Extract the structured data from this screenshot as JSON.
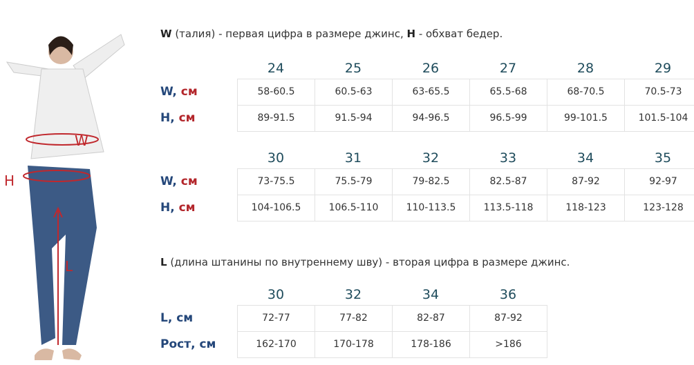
{
  "intro": {
    "w_letter": "W",
    "w_text": " (талия) - первая цифра в размере джинс, ",
    "h_letter": "H",
    "h_text": " - обхват бедер."
  },
  "l_intro": {
    "l_letter": "L",
    "l_text": " (длина штанины по внутреннему шву) - вторая цифра в размере джинс."
  },
  "figure": {
    "w_marker": "W",
    "h_marker": "H",
    "l_marker": "L"
  },
  "colors": {
    "header": "#1f4c5c",
    "label": "#24477a",
    "unit": "#b3262b",
    "marker": "#c0282d"
  },
  "tables": [
    {
      "headers": [
        "24",
        "25",
        "26",
        "27",
        "28",
        "29"
      ],
      "rows": [
        {
          "label": "W,",
          "unit": " см",
          "values": [
            "58-60.5",
            "60.5-63",
            "63-65.5",
            "65.5-68",
            "68-70.5",
            "70.5-73"
          ]
        },
        {
          "label": "H,",
          "unit": " см",
          "values": [
            "89-91.5",
            "91.5-94",
            "94-96.5",
            "96.5-99",
            "99-101.5",
            "101.5-104"
          ]
        }
      ]
    },
    {
      "headers": [
        "30",
        "31",
        "32",
        "33",
        "34",
        "35"
      ],
      "rows": [
        {
          "label": "W,",
          "unit": " см",
          "values": [
            "73-75.5",
            "75.5-79",
            "79-82.5",
            "82.5-87",
            "87-92",
            "92-97"
          ]
        },
        {
          "label": "H,",
          "unit": " см",
          "values": [
            "104-106.5",
            "106.5-110",
            "110-113.5",
            "113.5-118",
            "118-123",
            "123-128"
          ]
        }
      ]
    },
    {
      "headers": [
        "30",
        "32",
        "34",
        "36"
      ],
      "rows": [
        {
          "label": "L,",
          "unit": " см",
          "values": [
            "72-77",
            "77-82",
            "82-87",
            "87-92"
          ]
        },
        {
          "label": "Рост,",
          "unit": " см",
          "values": [
            "162-170",
            "170-178",
            "178-186",
            ">186"
          ]
        }
      ]
    }
  ]
}
